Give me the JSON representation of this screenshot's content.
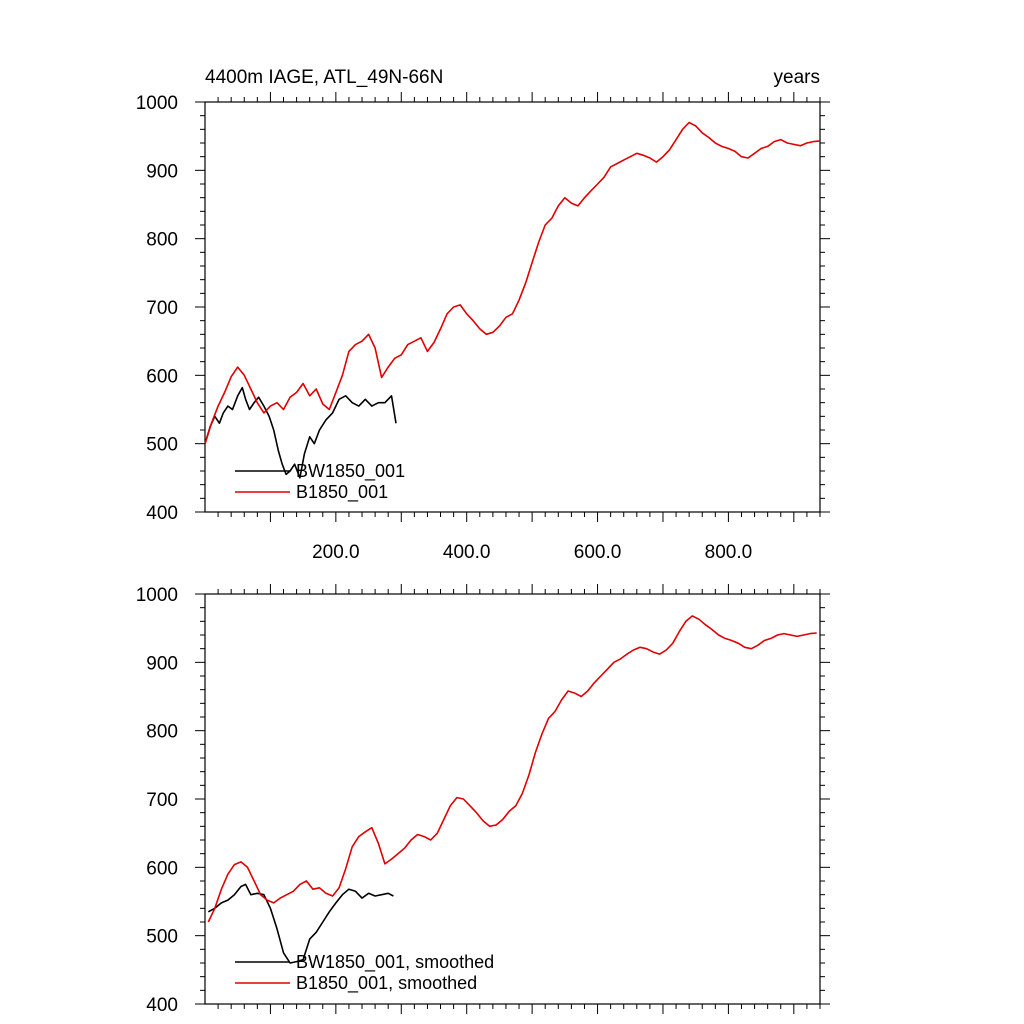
{
  "chart_data": [
    {
      "type": "line",
      "title": "4400m IAGE, ATL_49N-66N",
      "title_right": "years",
      "xlabel": "",
      "ylabel": "",
      "xlim": [
        0,
        940
      ],
      "ylim": [
        400,
        1000
      ],
      "x_ticks": [
        200,
        400,
        600,
        800
      ],
      "x_tick_labels": [
        "200.0",
        "400.0",
        "600.0",
        "800.0"
      ],
      "y_ticks": [
        400,
        500,
        600,
        700,
        800,
        900,
        1000
      ],
      "y_tick_labels": [
        "400",
        "500",
        "600",
        "700",
        "800",
        "900",
        "1000"
      ],
      "grid": false,
      "legend_position": "bottom-left",
      "series": [
        {
          "name": "BW1850_001",
          "color": "#000000",
          "x": [
            0,
            8,
            15,
            22,
            28,
            35,
            42,
            50,
            57,
            62,
            68,
            75,
            82,
            90,
            98,
            105,
            112,
            118,
            124,
            130,
            137,
            145,
            152,
            160,
            167,
            175,
            185,
            195,
            205,
            215,
            225,
            235,
            245,
            255,
            265,
            275,
            285,
            292
          ],
          "values": [
            500,
            525,
            540,
            530,
            545,
            555,
            550,
            570,
            582,
            565,
            550,
            560,
            568,
            555,
            540,
            520,
            490,
            470,
            455,
            460,
            470,
            450,
            485,
            510,
            500,
            520,
            535,
            545,
            565,
            570,
            560,
            555,
            565,
            555,
            560,
            560,
            570,
            530
          ]
        },
        {
          "name": "B1850_001",
          "color": "#e00000",
          "x": [
            0,
            10,
            20,
            30,
            40,
            50,
            60,
            70,
            80,
            90,
            100,
            110,
            120,
            130,
            140,
            150,
            160,
            170,
            180,
            190,
            200,
            210,
            220,
            230,
            240,
            250,
            260,
            270,
            280,
            290,
            300,
            310,
            320,
            330,
            340,
            350,
            360,
            370,
            380,
            390,
            400,
            410,
            420,
            430,
            440,
            450,
            460,
            470,
            480,
            490,
            500,
            510,
            520,
            530,
            540,
            550,
            560,
            570,
            580,
            590,
            600,
            610,
            620,
            630,
            640,
            650,
            660,
            670,
            680,
            690,
            700,
            710,
            720,
            730,
            740,
            750,
            760,
            770,
            780,
            790,
            800,
            810,
            820,
            830,
            840,
            850,
            860,
            870,
            880,
            890,
            900,
            910,
            920,
            930,
            940
          ],
          "values": [
            500,
            530,
            555,
            575,
            598,
            612,
            600,
            580,
            560,
            545,
            555,
            560,
            550,
            568,
            575,
            588,
            570,
            580,
            558,
            550,
            575,
            600,
            635,
            645,
            650,
            660,
            640,
            597,
            612,
            625,
            630,
            645,
            650,
            655,
            635,
            648,
            668,
            690,
            700,
            703,
            690,
            680,
            668,
            660,
            663,
            672,
            685,
            690,
            710,
            735,
            765,
            795,
            820,
            830,
            848,
            860,
            852,
            848,
            860,
            870,
            880,
            890,
            905,
            910,
            915,
            920,
            925,
            922,
            918,
            912,
            920,
            930,
            945,
            960,
            970,
            965,
            955,
            948,
            940,
            935,
            932,
            928,
            920,
            918,
            925,
            932,
            935,
            942,
            945,
            940,
            938,
            936,
            940,
            942,
            943
          ]
        }
      ]
    },
    {
      "type": "line",
      "title": "",
      "xlabel": "",
      "ylabel": "",
      "xlim": [
        0,
        940
      ],
      "ylim": [
        400,
        1000
      ],
      "y_ticks": [
        400,
        500,
        600,
        700,
        800,
        900,
        1000
      ],
      "y_tick_labels": [
        "400",
        "500",
        "600",
        "700",
        "800",
        "900",
        "1000"
      ],
      "grid": false,
      "legend_position": "bottom-left",
      "series": [
        {
          "name": "BW1850_001, smoothed",
          "color": "#000000",
          "x": [
            5,
            15,
            25,
            35,
            45,
            55,
            62,
            70,
            80,
            90,
            100,
            110,
            120,
            130,
            140,
            150,
            160,
            170,
            180,
            190,
            200,
            210,
            220,
            230,
            240,
            250,
            260,
            270,
            280,
            288
          ],
          "values": [
            535,
            540,
            548,
            552,
            560,
            572,
            575,
            560,
            562,
            560,
            540,
            510,
            475,
            460,
            462,
            465,
            495,
            505,
            520,
            535,
            548,
            560,
            568,
            565,
            555,
            562,
            558,
            560,
            562,
            558
          ]
        },
        {
          "name": "B1850_001, smoothed",
          "color": "#e00000",
          "x": [
            5,
            15,
            25,
            35,
            45,
            55,
            65,
            75,
            85,
            95,
            105,
            115,
            125,
            135,
            145,
            155,
            165,
            175,
            185,
            195,
            205,
            215,
            225,
            235,
            245,
            255,
            265,
            275,
            285,
            295,
            305,
            315,
            325,
            335,
            345,
            355,
            365,
            375,
            385,
            395,
            405,
            415,
            425,
            435,
            445,
            455,
            465,
            475,
            485,
            495,
            505,
            515,
            525,
            535,
            545,
            555,
            565,
            575,
            585,
            595,
            605,
            615,
            625,
            635,
            645,
            655,
            665,
            675,
            685,
            695,
            705,
            715,
            725,
            735,
            745,
            755,
            765,
            775,
            785,
            795,
            805,
            815,
            825,
            835,
            845,
            855,
            865,
            875,
            885,
            895,
            905,
            915,
            925,
            935
          ],
          "values": [
            520,
            540,
            568,
            590,
            604,
            608,
            600,
            580,
            560,
            552,
            548,
            555,
            560,
            565,
            575,
            580,
            568,
            570,
            562,
            558,
            570,
            598,
            630,
            645,
            652,
            658,
            635,
            605,
            612,
            620,
            628,
            640,
            648,
            645,
            640,
            650,
            670,
            690,
            702,
            700,
            690,
            680,
            668,
            660,
            662,
            670,
            682,
            690,
            708,
            735,
            768,
            795,
            818,
            828,
            845,
            858,
            855,
            850,
            858,
            870,
            880,
            890,
            900,
            905,
            912,
            918,
            922,
            920,
            915,
            912,
            918,
            928,
            945,
            960,
            968,
            963,
            955,
            948,
            940,
            935,
            932,
            928,
            922,
            920,
            925,
            932,
            935,
            940,
            942,
            940,
            938,
            940,
            942,
            943
          ]
        }
      ]
    }
  ]
}
